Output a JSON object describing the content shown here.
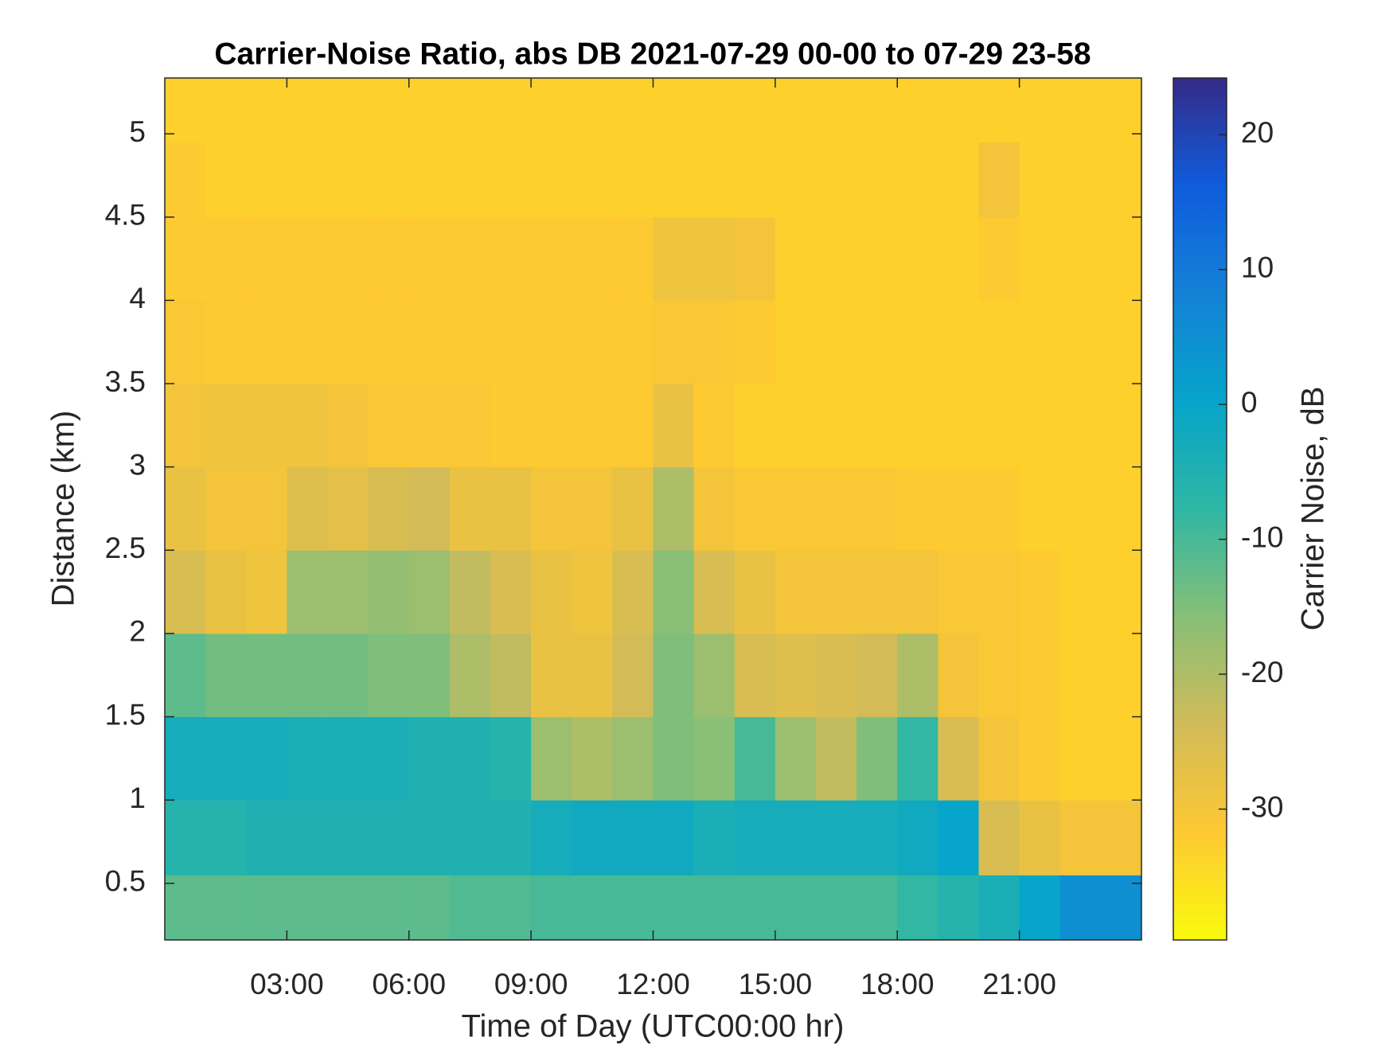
{
  "chart_data": {
    "type": "heatmap",
    "title": "Carrier-Noise Ratio, abs DB 2021-07-29 00-00 to 07-29 23-58",
    "x_label": "Time of Day (UTC00:00 hr)",
    "y_label": "Distance (km)",
    "colorbar_label": "Carrier Noise, dB",
    "x": [
      0.5,
      1.5,
      2.5,
      3.5,
      4.5,
      5.5,
      6.5,
      7.5,
      8.5,
      9.5,
      10.5,
      11.5,
      12.5,
      13.5,
      14.5,
      15.5,
      16.5,
      17.5,
      18.5,
      19.5,
      20.5,
      21.5,
      22.5,
      23.5
    ],
    "y": [
      0.35,
      0.75,
      1.25,
      1.75,
      2.25,
      2.75,
      3.25,
      3.75,
      4.25,
      4.75,
      5.15
    ],
    "z": [
      [
        -12,
        -12,
        -12,
        -12,
        -12,
        -12,
        -12,
        -11,
        -11,
        -10,
        -10,
        -10,
        -10,
        -10,
        -10,
        -10,
        -10,
        -10,
        -8,
        -6,
        -4,
        0,
        5,
        5
      ],
      [
        -6,
        -6,
        -5,
        -5,
        -5,
        -5,
        -5,
        -5,
        -5,
        -3,
        -2,
        -2,
        -2,
        -4,
        -3,
        -3,
        -3,
        -3,
        -2,
        0,
        -25,
        -28,
        -30,
        -30
      ],
      [
        -3,
        -3,
        -3,
        -4,
        -4,
        -4,
        -5,
        -5,
        -6,
        -18,
        -20,
        -18,
        -15,
        -16,
        -10,
        -18,
        -22,
        -15,
        -8,
        -25,
        -30,
        -32,
        -33,
        -33
      ],
      [
        -12,
        -14,
        -14,
        -14,
        -14,
        -15,
        -15,
        -20,
        -22,
        -28,
        -28,
        -24,
        -15,
        -18,
        -25,
        -26,
        -25,
        -24,
        -20,
        -30,
        -31,
        -32,
        -33,
        -33
      ],
      [
        -25,
        -28,
        -29,
        -18,
        -18,
        -17,
        -18,
        -22,
        -25,
        -28,
        -29,
        -25,
        -16,
        -25,
        -28,
        -30,
        -30,
        -30,
        -30,
        -31,
        -31,
        -32,
        -33,
        -33
      ],
      [
        -28,
        -30,
        -30,
        -26,
        -27,
        -25,
        -24,
        -28,
        -28,
        -30,
        -30,
        -28,
        -20,
        -30,
        -31,
        -31,
        -31,
        -31,
        -32,
        -32,
        -32,
        -33,
        -33,
        -33
      ],
      [
        -30,
        -29,
        -29,
        -29,
        -30,
        -31,
        -31,
        -31,
        -32,
        -32,
        -32,
        -32,
        -28,
        -32,
        -33,
        -33,
        -33,
        -33,
        -33,
        -33,
        -33,
        -33,
        -33,
        -33
      ],
      [
        -31,
        -32,
        -32,
        -32,
        -32,
        -32,
        -32,
        -32,
        -32,
        -32,
        -32,
        -32,
        -31,
        -31,
        -32,
        -33,
        -33,
        -33,
        -33,
        -33,
        -33,
        -33,
        -33,
        -33
      ],
      [
        -32,
        -32,
        -32,
        -32,
        -32,
        -32,
        -32,
        -32,
        -32,
        -32,
        -32,
        -32,
        -29,
        -29,
        -30,
        -33,
        -33,
        -33,
        -33,
        -33,
        -32,
        -33,
        -33,
        -33
      ],
      [
        -32,
        -33,
        -33,
        -33,
        -33,
        -33,
        -33,
        -33,
        -33,
        -33,
        -33,
        -33,
        -33,
        -33,
        -33,
        -33,
        -33,
        -33,
        -33,
        -33,
        -30,
        -33,
        -33,
        -33
      ],
      [
        -33,
        -33,
        -33,
        -33,
        -33,
        -33,
        -33,
        -33,
        -33,
        -33,
        -33,
        -33,
        -33,
        -33,
        -33,
        -33,
        -33,
        -33,
        -33,
        -33,
        -33,
        -33,
        -33,
        -33
      ]
    ],
    "xlim": [
      0,
      24
    ],
    "xticks": [
      {
        "value": 3,
        "label": "03:00"
      },
      {
        "value": 6,
        "label": "06:00"
      },
      {
        "value": 9,
        "label": "09:00"
      },
      {
        "value": 12,
        "label": "12:00"
      },
      {
        "value": 15,
        "label": "15:00"
      },
      {
        "value": 18,
        "label": "18:00"
      },
      {
        "value": 21,
        "label": "21:00"
      }
    ],
    "ylim": [
      0.16,
      5.335
    ],
    "yticks": [
      0.5,
      1,
      1.5,
      2,
      2.5,
      3,
      3.5,
      4,
      4.5,
      5
    ],
    "clim": [
      -39.7,
      24.2
    ],
    "cticks": [
      -30,
      -20,
      -10,
      0,
      10,
      20
    ],
    "colormap": [
      "#f9fb0e",
      "#fec832",
      "#d1bb59",
      "#87bf77",
      "#2eb7a4",
      "#06a4ca",
      "#1481d6",
      "#0f5cdd",
      "#352a87"
    ]
  }
}
